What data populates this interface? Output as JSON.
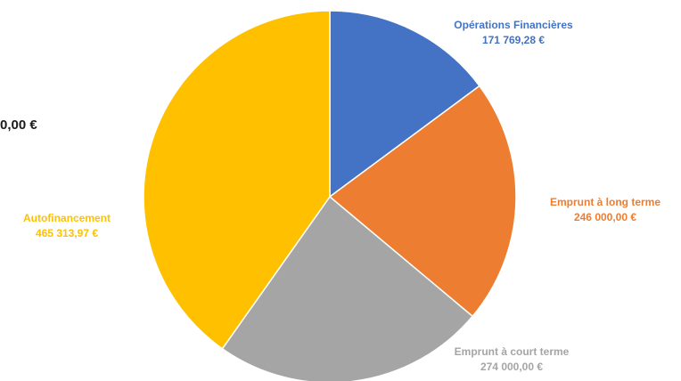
{
  "clipped_text": "0,00 €",
  "chart_data": {
    "type": "pie",
    "slices": [
      {
        "label": "Opérations Financières",
        "value_label": "171 769,28 €",
        "value": 171769.28,
        "color": "#4472C4"
      },
      {
        "label": "Emprunt à long terme",
        "value_label": "246 000,00 €",
        "value": 246000.0,
        "color": "#ED7D31"
      },
      {
        "label": "Emprunt à court terme",
        "value_label": "274 000,00 €",
        "value": 274000.0,
        "color": "#A5A5A5"
      },
      {
        "label": "Autofinancement",
        "value_label": "465 313,97 €",
        "value": 465313.97,
        "color": "#FFC000"
      }
    ],
    "label_colors": [
      "#4472C4",
      "#ED7D31",
      "#A5A5A5",
      "#FFC000"
    ],
    "start": "top",
    "direction": "clockwise"
  }
}
